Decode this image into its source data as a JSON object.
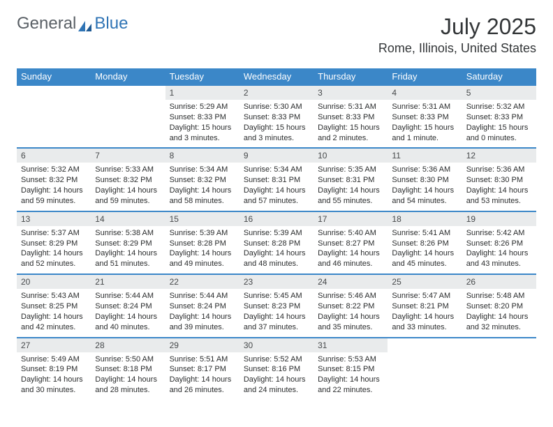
{
  "brand": {
    "general": "General",
    "blue": "Blue"
  },
  "title": {
    "month": "July 2025",
    "location": "Rome, Illinois, United States"
  },
  "colors": {
    "header_bg": "#3B87C8",
    "header_text": "#ffffff",
    "daynum_bg": "#e9ebec",
    "daynum_text": "#46494b",
    "body_text": "#2a2c2d",
    "border": "#3B87C8",
    "logo_blue": "#2f74b5",
    "logo_gray": "#5a6066",
    "title_color": "#333638"
  },
  "fonts": {
    "title_size": 32,
    "location_size": 18,
    "dayname_size": 13,
    "daynum_size": 12,
    "info_size": 11
  },
  "daynames": [
    "Sunday",
    "Monday",
    "Tuesday",
    "Wednesday",
    "Thursday",
    "Friday",
    "Saturday"
  ],
  "weeks": [
    [
      {
        "n": "",
        "sr": "",
        "ss": "",
        "dl": ""
      },
      {
        "n": "",
        "sr": "",
        "ss": "",
        "dl": ""
      },
      {
        "n": "1",
        "sr": "Sunrise: 5:29 AM",
        "ss": "Sunset: 8:33 PM",
        "dl": "Daylight: 15 hours and 3 minutes."
      },
      {
        "n": "2",
        "sr": "Sunrise: 5:30 AM",
        "ss": "Sunset: 8:33 PM",
        "dl": "Daylight: 15 hours and 3 minutes."
      },
      {
        "n": "3",
        "sr": "Sunrise: 5:31 AM",
        "ss": "Sunset: 8:33 PM",
        "dl": "Daylight: 15 hours and 2 minutes."
      },
      {
        "n": "4",
        "sr": "Sunrise: 5:31 AM",
        "ss": "Sunset: 8:33 PM",
        "dl": "Daylight: 15 hours and 1 minute."
      },
      {
        "n": "5",
        "sr": "Sunrise: 5:32 AM",
        "ss": "Sunset: 8:33 PM",
        "dl": "Daylight: 15 hours and 0 minutes."
      }
    ],
    [
      {
        "n": "6",
        "sr": "Sunrise: 5:32 AM",
        "ss": "Sunset: 8:32 PM",
        "dl": "Daylight: 14 hours and 59 minutes."
      },
      {
        "n": "7",
        "sr": "Sunrise: 5:33 AM",
        "ss": "Sunset: 8:32 PM",
        "dl": "Daylight: 14 hours and 59 minutes."
      },
      {
        "n": "8",
        "sr": "Sunrise: 5:34 AM",
        "ss": "Sunset: 8:32 PM",
        "dl": "Daylight: 14 hours and 58 minutes."
      },
      {
        "n": "9",
        "sr": "Sunrise: 5:34 AM",
        "ss": "Sunset: 8:31 PM",
        "dl": "Daylight: 14 hours and 57 minutes."
      },
      {
        "n": "10",
        "sr": "Sunrise: 5:35 AM",
        "ss": "Sunset: 8:31 PM",
        "dl": "Daylight: 14 hours and 55 minutes."
      },
      {
        "n": "11",
        "sr": "Sunrise: 5:36 AM",
        "ss": "Sunset: 8:30 PM",
        "dl": "Daylight: 14 hours and 54 minutes."
      },
      {
        "n": "12",
        "sr": "Sunrise: 5:36 AM",
        "ss": "Sunset: 8:30 PM",
        "dl": "Daylight: 14 hours and 53 minutes."
      }
    ],
    [
      {
        "n": "13",
        "sr": "Sunrise: 5:37 AM",
        "ss": "Sunset: 8:29 PM",
        "dl": "Daylight: 14 hours and 52 minutes."
      },
      {
        "n": "14",
        "sr": "Sunrise: 5:38 AM",
        "ss": "Sunset: 8:29 PM",
        "dl": "Daylight: 14 hours and 51 minutes."
      },
      {
        "n": "15",
        "sr": "Sunrise: 5:39 AM",
        "ss": "Sunset: 8:28 PM",
        "dl": "Daylight: 14 hours and 49 minutes."
      },
      {
        "n": "16",
        "sr": "Sunrise: 5:39 AM",
        "ss": "Sunset: 8:28 PM",
        "dl": "Daylight: 14 hours and 48 minutes."
      },
      {
        "n": "17",
        "sr": "Sunrise: 5:40 AM",
        "ss": "Sunset: 8:27 PM",
        "dl": "Daylight: 14 hours and 46 minutes."
      },
      {
        "n": "18",
        "sr": "Sunrise: 5:41 AM",
        "ss": "Sunset: 8:26 PM",
        "dl": "Daylight: 14 hours and 45 minutes."
      },
      {
        "n": "19",
        "sr": "Sunrise: 5:42 AM",
        "ss": "Sunset: 8:26 PM",
        "dl": "Daylight: 14 hours and 43 minutes."
      }
    ],
    [
      {
        "n": "20",
        "sr": "Sunrise: 5:43 AM",
        "ss": "Sunset: 8:25 PM",
        "dl": "Daylight: 14 hours and 42 minutes."
      },
      {
        "n": "21",
        "sr": "Sunrise: 5:44 AM",
        "ss": "Sunset: 8:24 PM",
        "dl": "Daylight: 14 hours and 40 minutes."
      },
      {
        "n": "22",
        "sr": "Sunrise: 5:44 AM",
        "ss": "Sunset: 8:24 PM",
        "dl": "Daylight: 14 hours and 39 minutes."
      },
      {
        "n": "23",
        "sr": "Sunrise: 5:45 AM",
        "ss": "Sunset: 8:23 PM",
        "dl": "Daylight: 14 hours and 37 minutes."
      },
      {
        "n": "24",
        "sr": "Sunrise: 5:46 AM",
        "ss": "Sunset: 8:22 PM",
        "dl": "Daylight: 14 hours and 35 minutes."
      },
      {
        "n": "25",
        "sr": "Sunrise: 5:47 AM",
        "ss": "Sunset: 8:21 PM",
        "dl": "Daylight: 14 hours and 33 minutes."
      },
      {
        "n": "26",
        "sr": "Sunrise: 5:48 AM",
        "ss": "Sunset: 8:20 PM",
        "dl": "Daylight: 14 hours and 32 minutes."
      }
    ],
    [
      {
        "n": "27",
        "sr": "Sunrise: 5:49 AM",
        "ss": "Sunset: 8:19 PM",
        "dl": "Daylight: 14 hours and 30 minutes."
      },
      {
        "n": "28",
        "sr": "Sunrise: 5:50 AM",
        "ss": "Sunset: 8:18 PM",
        "dl": "Daylight: 14 hours and 28 minutes."
      },
      {
        "n": "29",
        "sr": "Sunrise: 5:51 AM",
        "ss": "Sunset: 8:17 PM",
        "dl": "Daylight: 14 hours and 26 minutes."
      },
      {
        "n": "30",
        "sr": "Sunrise: 5:52 AM",
        "ss": "Sunset: 8:16 PM",
        "dl": "Daylight: 14 hours and 24 minutes."
      },
      {
        "n": "31",
        "sr": "Sunrise: 5:53 AM",
        "ss": "Sunset: 8:15 PM",
        "dl": "Daylight: 14 hours and 22 minutes."
      },
      {
        "n": "",
        "sr": "",
        "ss": "",
        "dl": ""
      },
      {
        "n": "",
        "sr": "",
        "ss": "",
        "dl": ""
      }
    ]
  ]
}
